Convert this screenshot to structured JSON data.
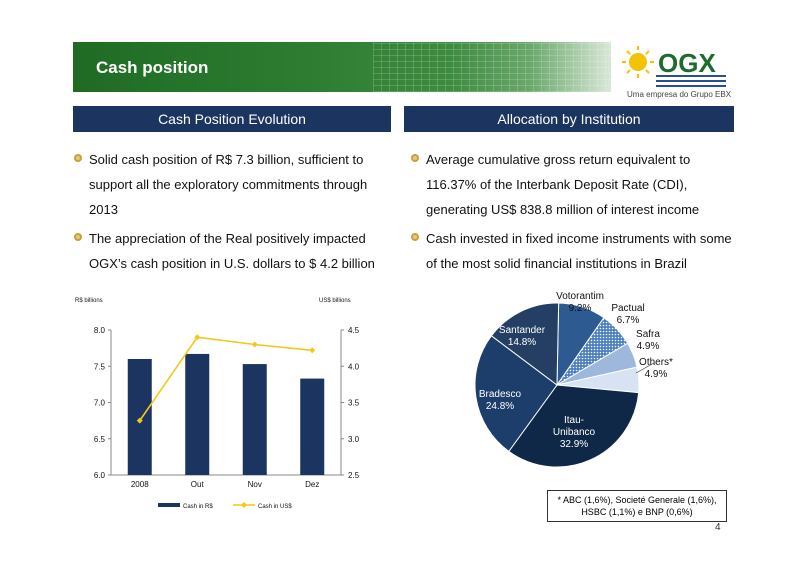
{
  "header": {
    "title": "Cash position",
    "logo_text": "OGX",
    "logo_sub": "Uma empresa do Grupo EBX"
  },
  "left": {
    "heading": "Cash Position Evolution",
    "bullets": [
      "Solid cash position of R$ 7.3 billion, sufficient to support all the exploratory commitments through 2013",
      "The appreciation of the Real positively impacted OGX’s cash position in U.S. dollars to $ 4.2 billion"
    ]
  },
  "right": {
    "heading": "Allocation by Institution",
    "bullets": [
      "Average cumulative gross return equivalent to 116.37% of the Interbank Deposit Rate (CDI), generating US$ 838.8 million of interest income",
      "Cash invested in fixed income instruments with some of the most solid financial institutions in Brazil"
    ]
  },
  "colors": {
    "navy": "#1b3560",
    "bullet": "#c8a040",
    "line": "#f2c81a"
  },
  "chart_data": [
    {
      "type": "bar",
      "categories": [
        "2008",
        "Out",
        "Nov",
        "Dez"
      ],
      "ylabel": "R$ billions",
      "y2label": "US$ billions",
      "ylim": [
        6.0,
        8.0
      ],
      "y2lim": [
        2.5,
        4.5
      ],
      "yticks": [
        "6.0",
        "6.5",
        "7.0",
        "7.5",
        "8.0"
      ],
      "y2ticks": [
        "2.5",
        "3.0",
        "3.5",
        "4.0",
        "4.5"
      ],
      "series": [
        {
          "name": "Cash in R$",
          "type": "bar",
          "axis": "left",
          "values": [
            7.6,
            7.67,
            7.53,
            7.33
          ]
        },
        {
          "name": "Cash in US$",
          "type": "line",
          "axis": "right",
          "values": [
            3.25,
            4.4,
            4.3,
            4.22
          ]
        }
      ],
      "legend": "bottom"
    },
    {
      "type": "pie",
      "slices": [
        {
          "label": "Votorantim",
          "pct": "9.2%",
          "value": 9.2,
          "color": "#2e5a92"
        },
        {
          "label": "Pactual",
          "pct": "6.7%",
          "value": 6.7,
          "color": "#4a7fc0",
          "pattern": true
        },
        {
          "label": "Safra",
          "pct": "4.9%",
          "value": 4.9,
          "color": "#9db8dc"
        },
        {
          "label": "Others*",
          "pct": "4.9%",
          "value": 4.9,
          "color": "#d7e3f2"
        },
        {
          "label": "Itau-Unibanco",
          "pct": "32.9%",
          "value": 32.9,
          "color": "#0f2847"
        },
        {
          "label": "Bradesco",
          "pct": "24.8%",
          "value": 24.8,
          "color": "#1d3d6b"
        },
        {
          "label": "Santander",
          "pct": "14.8%",
          "value": 14.8,
          "color": "#243f63"
        }
      ]
    }
  ],
  "footnote": [
    "* ABC (1,6%), Societé Generale (1,6%),",
    "HSBC (1,1%) e BNP (0,6%)"
  ],
  "page_number": "4"
}
